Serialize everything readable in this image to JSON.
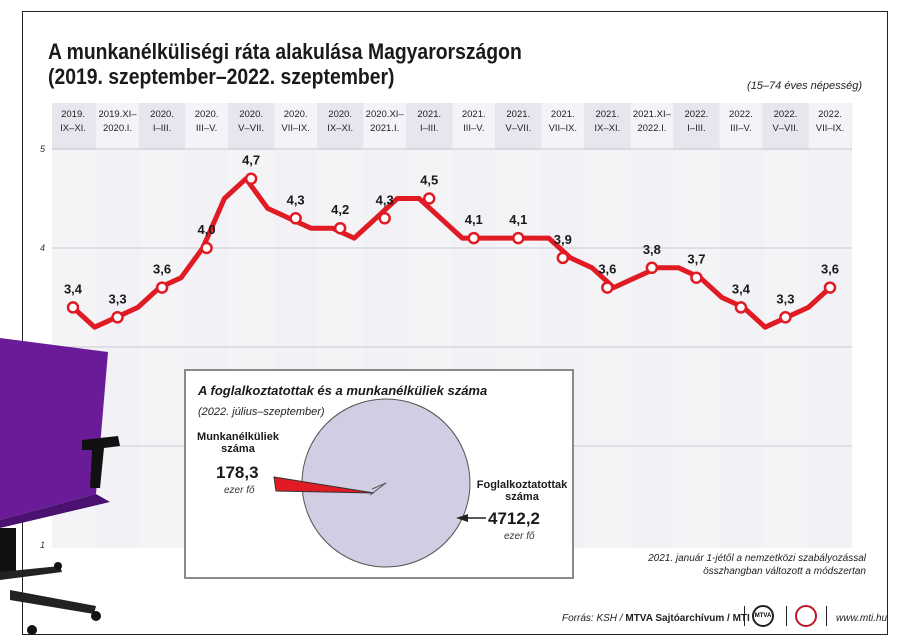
{
  "title": "A munkanélküliségi ráta alakulása Magyarországon",
  "subtitle": "(2019. szeptember–2022. szeptember)",
  "population_note": "(15–74 éves népesség)",
  "colors": {
    "line": "#e01b24",
    "band": "#e6e6ee",
    "stripe": "#f4f4f8",
    "pie": "#d3cde3",
    "slice": "#e01b24",
    "chair": "#6a1c98"
  },
  "chart_data": {
    "type": "line",
    "periods": [
      {
        "l1": "2019.",
        "l2": "IX–XI."
      },
      {
        "l1": "2019.XI–",
        "l2": "2020.I."
      },
      {
        "l1": "2020.",
        "l2": "I–III."
      },
      {
        "l1": "2020.",
        "l2": "III–V."
      },
      {
        "l1": "2020.",
        "l2": "V–VII."
      },
      {
        "l1": "2020.",
        "l2": "VII–IX."
      },
      {
        "l1": "2020.",
        "l2": "IX–XI."
      },
      {
        "l1": "2020.XI–",
        "l2": "2021.I."
      },
      {
        "l1": "2021.",
        "l2": "I–III."
      },
      {
        "l1": "2021.",
        "l2": "III–V."
      },
      {
        "l1": "2021.",
        "l2": "V–VII."
      },
      {
        "l1": "2021.",
        "l2": "VII–IX."
      },
      {
        "l1": "2021.",
        "l2": "IX–XI."
      },
      {
        "l1": "2021.XI–",
        "l2": "2022.I."
      },
      {
        "l1": "2022.",
        "l2": "I–III."
      },
      {
        "l1": "2022.",
        "l2": "III–V."
      },
      {
        "l1": "2022.",
        "l2": "V–VII."
      },
      {
        "l1": "2022.",
        "l2": "VII–IX."
      }
    ],
    "labeled": [
      {
        "label": "3,4",
        "value": 3.4
      },
      {
        "label": "3,3",
        "value": 3.3
      },
      {
        "label": "3,6",
        "value": 3.6
      },
      {
        "label": "4,0",
        "value": 4.0
      },
      {
        "label": "4,7",
        "value": 4.7
      },
      {
        "label": "4,3",
        "value": 4.3
      },
      {
        "label": "4,2",
        "value": 4.2
      },
      {
        "label": "4,3",
        "value": 4.3
      },
      {
        "label": "4,5",
        "value": 4.5
      },
      {
        "label": "4,1",
        "value": 4.1
      },
      {
        "label": "4,1",
        "value": 4.1
      },
      {
        "label": "3,9",
        "value": 3.9
      },
      {
        "label": "3,6",
        "value": 3.6
      },
      {
        "label": "3,8",
        "value": 3.8
      },
      {
        "label": "3,7",
        "value": 3.7
      },
      {
        "label": "3,4",
        "value": 3.4
      },
      {
        "label": "3,3",
        "value": 3.3
      },
      {
        "label": "3,6",
        "value": 3.6
      }
    ],
    "monthly": [
      3.4,
      3.2,
      3.3,
      3.4,
      3.6,
      3.7,
      4.0,
      4.5,
      4.7,
      4.4,
      4.3,
      4.2,
      4.2,
      4.1,
      4.3,
      4.5,
      4.5,
      4.3,
      4.1,
      4.1,
      4.1,
      4.1,
      4.1,
      3.9,
      3.8,
      3.6,
      3.7,
      3.8,
      3.8,
      3.7,
      3.5,
      3.4,
      3.2,
      3.3,
      3.4,
      3.6
    ],
    "y_ticks": [
      {
        "label": "5",
        "value": 5
      },
      {
        "label": "4",
        "value": 4
      },
      {
        "label": "1",
        "value": 1
      }
    ],
    "ylim": [
      1,
      5
    ]
  },
  "inset": {
    "title": "A foglalkoztatottak és a munkanélküliek száma",
    "subtitle": "(2022. július–szeptember)",
    "unemployed_label_1": "Munkanélküliek",
    "unemployed_label_2": "száma",
    "unemployed_value": "178,3",
    "unemployed_num": 178.3,
    "employed_label_1": "Foglalkoztatottak",
    "employed_label_2": "száma",
    "employed_value": "4712,2",
    "employed_num": 4712.2,
    "unit": "ezer fő"
  },
  "footnote_1": "2021. január 1-jétől a nemzetközi szabályozással",
  "footnote_2": "összhangban változott a módszertan",
  "source_prefix": "Forrás: KSH / ",
  "source_bold": "MTVA Sajtóarchívum / MTI",
  "logo_text": "MTVA",
  "web": "www.mti.hu"
}
